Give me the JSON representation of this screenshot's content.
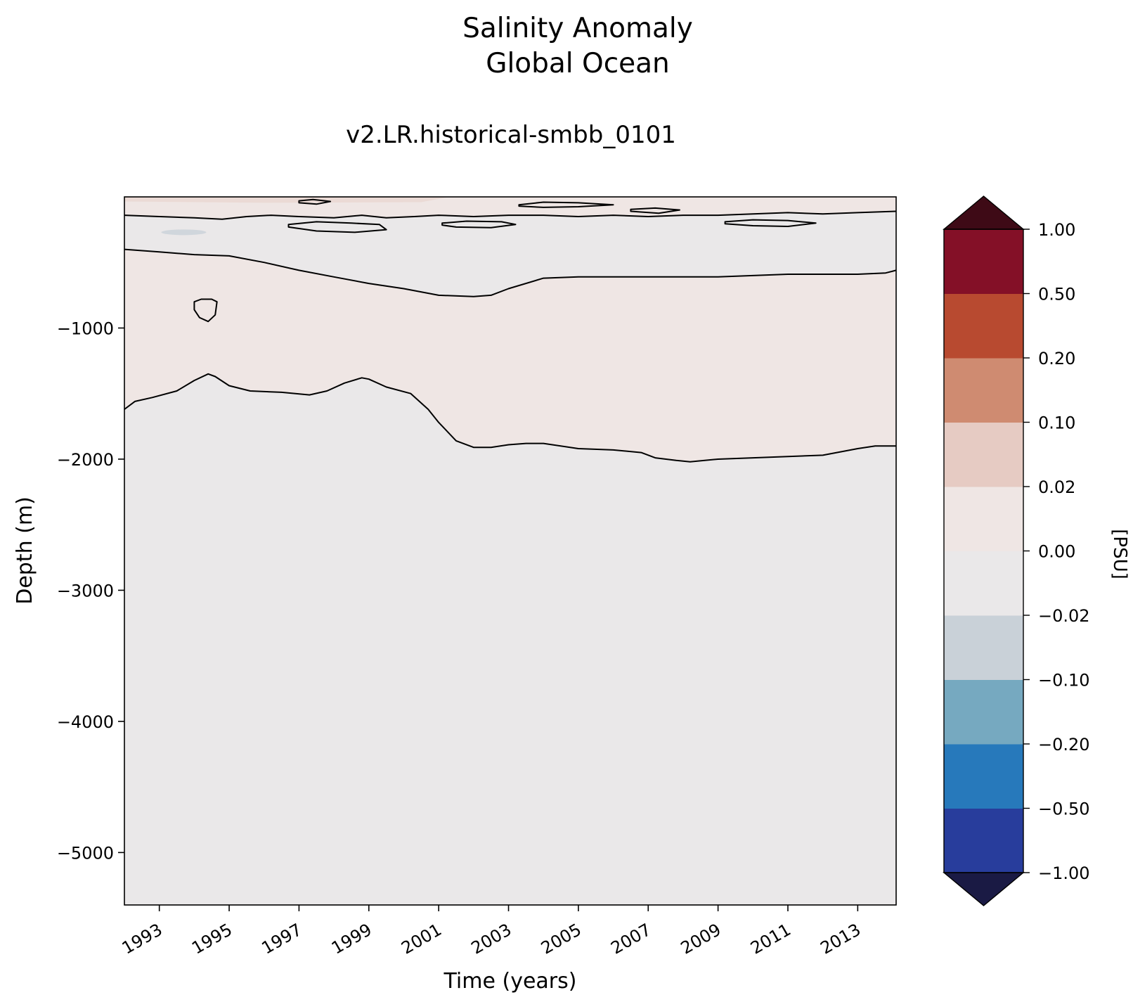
{
  "chart_data": {
    "type": "contour",
    "title": "Salinity Anomaly",
    "subtitle": "Global Ocean",
    "run_label": "v2.LR.historical-smbb_0101",
    "xlabel": "Time (years)",
    "ylabel": "Depth (m)",
    "xlim": [
      1992.0,
      2014.1
    ],
    "ylim": [
      -5400,
      0
    ],
    "x_ticks": [
      1993,
      1995,
      1997,
      1999,
      2001,
      2003,
      2005,
      2007,
      2009,
      2011,
      2013
    ],
    "x_tick_labels": [
      "1993",
      "1995",
      "1997",
      "1999",
      "2001",
      "2003",
      "2005",
      "2007",
      "2009",
      "2011",
      "2013"
    ],
    "y_ticks": [
      -1000,
      -2000,
      -3000,
      -4000,
      -5000
    ],
    "y_tick_labels": [
      "−1000",
      "−2000",
      "−3000",
      "−4000",
      "−5000"
    ],
    "colorbar": {
      "label": "[PSU]",
      "levels": [
        -1.0,
        -0.5,
        -0.2,
        -0.1,
        -0.02,
        0.0,
        0.02,
        0.1,
        0.2,
        0.5,
        1.0
      ],
      "tick_labels": [
        "−1.00",
        "−0.50",
        "−0.20",
        "−0.10",
        "−0.02",
        "0.00",
        "0.02",
        "0.10",
        "0.20",
        "0.50",
        "1.00"
      ],
      "colors": [
        "#283d9c",
        "#2779bb",
        "#76a9c0",
        "#c9d1d8",
        "#eae8e9",
        "#efe6e4",
        "#e6cbc3",
        "#cf8b71",
        "#b84a30",
        "#841027"
      ],
      "under_color": "#1a1a44",
      "over_color": "#3e0a16",
      "extend": "both"
    },
    "regions": [
      {
        "name": "near-zero-negative",
        "band": [
          -0.02,
          0.0
        ],
        "color": "#eae8e9"
      },
      {
        "name": "near-zero-positive",
        "band": [
          0.0,
          0.02
        ],
        "color": "#efe6e4"
      },
      {
        "name": "weak-positive",
        "band": [
          0.02,
          0.1
        ],
        "color": "#e6cbc3"
      },
      {
        "name": "weak-negative",
        "band": [
          -0.1,
          -0.02
        ],
        "color": "#c9d1d8"
      }
    ],
    "contour_level": 0.0,
    "contours": [
      {
        "name": "zero-contour-deep",
        "x": [
          1992.0,
          1992.3,
          1992.8,
          1993.5,
          1994.0,
          1994.4,
          1994.6,
          1995.0,
          1995.6,
          1996.5,
          1997.3,
          1997.8,
          1998.3,
          1998.8,
          1999.0,
          1999.5,
          2000.2,
          2000.7,
          2001.0,
          2001.5,
          2002.0,
          2002.5,
          2003.0,
          2003.5,
          2004.0,
          2005.0,
          2006.0,
          2006.8,
          2007.2,
          2007.8,
          2008.2,
          2009.0,
          2010.0,
          2011.0,
          2012.0,
          2013.0,
          2013.5,
          2014.1
        ],
        "y": [
          -1620,
          -1560,
          -1530,
          -1480,
          -1400,
          -1350,
          -1370,
          -1440,
          -1480,
          -1490,
          -1510,
          -1480,
          -1420,
          -1380,
          -1390,
          -1450,
          -1500,
          -1620,
          -1720,
          -1860,
          -1910,
          -1910,
          -1890,
          -1880,
          -1880,
          -1920,
          -1930,
          -1950,
          -1990,
          -2010,
          -2020,
          -2000,
          -1990,
          -1980,
          -1970,
          -1920,
          -1900,
          -1900
        ]
      },
      {
        "name": "zero-contour-mid",
        "x": [
          1992.0,
          1993.0,
          1994.0,
          1995.0,
          1996.0,
          1997.0,
          1998.0,
          1999.0,
          2000.0,
          2001.0,
          2002.0,
          2002.5,
          2003.0,
          2004.0,
          2005.0,
          2006.0,
          2007.0,
          2008.0,
          2009.0,
          2010.0,
          2011.0,
          2012.0,
          2013.0,
          2013.8,
          2014.1
        ],
        "y": [
          -400,
          -420,
          -440,
          -450,
          -500,
          -560,
          -610,
          -660,
          -700,
          -750,
          -760,
          -750,
          -700,
          -620,
          -610,
          -610,
          -610,
          -610,
          -610,
          -600,
          -590,
          -590,
          -590,
          -580,
          -560
        ]
      },
      {
        "name": "zero-contour-upper",
        "x": [
          1992.0,
          1993.0,
          1994.0,
          1994.8,
          1995.5,
          1996.2,
          1997.0,
          1998.0,
          1998.8,
          1999.5,
          2000.3,
          2001.0,
          2002.0,
          2003.0,
          2004.0,
          2005.0,
          2006.0,
          2007.0,
          2008.0,
          2009.0,
          2010.0,
          2011.0,
          2012.0,
          2013.0,
          2014.1
        ],
        "y": [
          -140,
          -150,
          -160,
          -170,
          -150,
          -140,
          -150,
          -160,
          -140,
          -160,
          -150,
          -140,
          -150,
          -140,
          -140,
          -150,
          -140,
          -150,
          -140,
          -140,
          -130,
          -120,
          -130,
          -120,
          -110
        ]
      },
      {
        "name": "closed-loop-1994",
        "closed": true,
        "x": [
          1994.0,
          1994.2,
          1994.5,
          1994.65,
          1994.6,
          1994.4,
          1994.15,
          1994.0
        ],
        "y": [
          -800,
          -780,
          -780,
          -800,
          -900,
          -950,
          -920,
          -860
        ]
      },
      {
        "name": "closed-loop-1996",
        "closed": true,
        "x": [
          1996.7,
          1997.5,
          1998.5,
          1999.3,
          1999.5,
          1998.6,
          1997.5,
          1996.7
        ],
        "y": [
          -210,
          -190,
          -200,
          -210,
          -250,
          -270,
          -260,
          -230
        ]
      },
      {
        "name": "closed-loop-2002",
        "closed": true,
        "x": [
          2003.3,
          2004.0,
          2005.0,
          2006.0,
          2005.0,
          2004.0,
          2003.3
        ],
        "y": [
          -60,
          -40,
          -45,
          -60,
          -75,
          -80,
          -70
        ]
      },
      {
        "name": "closed-loop-2009",
        "closed": true,
        "x": [
          2009.2,
          2010.0,
          2011.0,
          2011.8,
          2011.0,
          2010.0,
          2009.2
        ],
        "y": [
          -190,
          -175,
          -180,
          -200,
          -225,
          -220,
          -205
        ]
      },
      {
        "name": "closed-loop-2002b",
        "closed": true,
        "x": [
          2001.1,
          2001.8,
          2002.8,
          2003.2,
          2002.5,
          2001.5,
          2001.1
        ],
        "y": [
          -200,
          -185,
          -190,
          -210,
          -235,
          -230,
          -215
        ]
      },
      {
        "name": "closed-loop-1997",
        "closed": true,
        "x": [
          1997.0,
          1997.4,
          1997.9,
          1997.5,
          1997.0
        ],
        "y": [
          -30,
          -20,
          -35,
          -55,
          -45
        ]
      },
      {
        "name": "closed-loop-2007",
        "closed": true,
        "x": [
          2006.5,
          2007.2,
          2007.9,
          2007.3,
          2006.5
        ],
        "y": [
          -95,
          -85,
          -100,
          -125,
          -110
        ]
      }
    ]
  }
}
